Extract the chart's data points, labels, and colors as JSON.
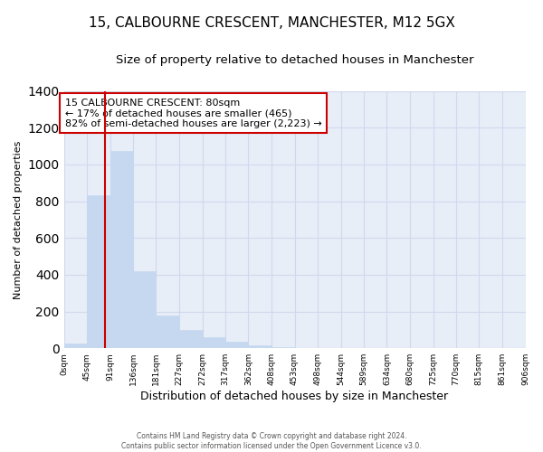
{
  "title": "15, CALBOURNE CRESCENT, MANCHESTER, M12 5GX",
  "subtitle": "Size of property relative to detached houses in Manchester",
  "xlabel": "Distribution of detached houses by size in Manchester",
  "ylabel": "Number of detached properties",
  "bar_values": [
    25,
    830,
    1075,
    420,
    180,
    100,
    58,
    35,
    15,
    5,
    0,
    0,
    0,
    0,
    0,
    0,
    0,
    0,
    0,
    0
  ],
  "bin_edges": [
    0,
    45,
    91,
    136,
    181,
    227,
    272,
    317,
    362,
    408,
    453,
    498,
    544,
    589,
    634,
    680,
    725,
    770,
    815,
    861,
    906
  ],
  "tick_labels": [
    "0sqm",
    "45sqm",
    "91sqm",
    "136sqm",
    "181sqm",
    "227sqm",
    "272sqm",
    "317sqm",
    "362sqm",
    "408sqm",
    "453sqm",
    "498sqm",
    "544sqm",
    "589sqm",
    "634sqm",
    "680sqm",
    "725sqm",
    "770sqm",
    "815sqm",
    "861sqm",
    "906sqm"
  ],
  "bar_color": "#c5d8f0",
  "bar_edgecolor": "#c5d8f0",
  "redline_x": 80,
  "annotation_text": "15 CALBOURNE CRESCENT: 80sqm\n← 17% of detached houses are smaller (465)\n82% of semi-detached houses are larger (2,223) →",
  "annotation_box_facecolor": "#ffffff",
  "annotation_box_edgecolor": "#cc0000",
  "ylim": [
    0,
    1400
  ],
  "yticks": [
    0,
    200,
    400,
    600,
    800,
    1000,
    1200,
    1400
  ],
  "grid_color": "#d0d8ec",
  "figure_facecolor": "#ffffff",
  "plot_facecolor": "#e8eef8",
  "footer_line1": "Contains HM Land Registry data © Crown copyright and database right 2024.",
  "footer_line2": "Contains public sector information licensed under the Open Government Licence v3.0.",
  "title_fontsize": 11,
  "subtitle_fontsize": 9.5
}
